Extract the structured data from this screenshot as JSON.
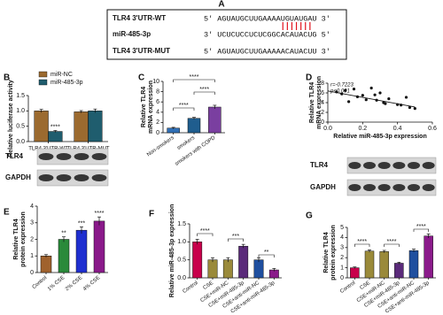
{
  "panel_a": {
    "label": "A",
    "rows": [
      {
        "name": "TLR4 3'UTR-WT",
        "sequence": "5' AGUAUGCUUGAAAAUGUAUGAU 3'"
      },
      {
        "name": "miR-485-3p",
        "sequence": "3' UCUCUCCUCUCGGCACAUACUG 5'"
      },
      {
        "name": "TLR4 3'UTR-MUT",
        "sequence": "5' AGUAUGCUUGAAAAACAUACUU 3'"
      }
    ]
  },
  "chart_data": [
    {
      "type": "bar",
      "label": "B",
      "y_label": [
        "Relative luciferase activity"
      ],
      "categories": [
        "TLR4 3'UTR-WT",
        "TLR4 3'UTR-MUT"
      ],
      "series": [
        {
          "name": "miR-NC",
          "color": "#9b6a2f",
          "values": [
            1.0,
            0.97
          ],
          "errors": [
            0.05,
            0.04
          ]
        },
        {
          "name": "miR-485-3p",
          "color": "#1f5d6e",
          "values": [
            0.33,
            1.0
          ],
          "errors": [
            0.03,
            0.06
          ]
        }
      ],
      "ylim": [
        0,
        1.5
      ],
      "yticks": [
        {
          "value": 0,
          "label": "0.0"
        },
        {
          "value": 0.5,
          "label": "0.5"
        },
        {
          "value": 1,
          "label": "1.0"
        },
        {
          "value": 1.5,
          "label": "1.5"
        }
      ],
      "annotations": [
        "****"
      ]
    },
    {
      "type": "bar",
      "label": "C",
      "y_label": [
        "Relative TLR4",
        "mRNA expression"
      ],
      "categories": [
        "Non-smokers",
        "smokers",
        "smokers with COPD"
      ],
      "values": [
        0.9,
        2.8,
        5.0
      ],
      "errors": [
        0.15,
        0.2,
        0.35
      ],
      "colors": [
        "#2f6fb5",
        "#1f5d8e",
        "#7a3fa0"
      ],
      "ylim": [
        0,
        10
      ],
      "yticks": [
        0,
        2,
        4,
        6,
        8,
        10
      ],
      "annotations": [
        "****",
        "****",
        "****"
      ]
    },
    {
      "type": "scatter",
      "label": "D",
      "y_label": [
        "Relative TLR4",
        "mRNA expression"
      ],
      "x_label": "Relative miR-485-3p expression",
      "x": [
        0.05,
        0.08,
        0.1,
        0.12,
        0.15,
        0.17,
        0.2,
        0.22,
        0.25,
        0.27,
        0.28,
        0.3,
        0.32,
        0.33,
        0.35,
        0.4,
        0.42,
        0.45,
        0.47,
        0.5
      ],
      "y": [
        6.2,
        5.8,
        6.5,
        4.2,
        6.8,
        5.2,
        5.5,
        4.6,
        7.0,
        5.6,
        4.5,
        6.0,
        4.0,
        3.8,
        4.8,
        3.6,
        3.5,
        5.1,
        3.0,
        2.8
      ],
      "trend": {
        "x": [
          0.0,
          0.5
        ],
        "y": [
          6.4,
          3.1
        ]
      },
      "xlim": [
        0,
        0.6
      ],
      "xticks": [
        {
          "value": 0,
          "label": "0.0"
        },
        0.2,
        0.4,
        0.6
      ],
      "ylim": [
        0,
        8
      ],
      "yticks": [
        0,
        2,
        4,
        6,
        8
      ],
      "annotations": [
        "r=-0.7223",
        "p<0.001"
      ]
    },
    {
      "type": "bar",
      "label": "E",
      "y_label": [
        "Relative TLR4",
        "protein expression"
      ],
      "blot_labels": [
        "TLR4",
        "GAPDH"
      ],
      "categories": [
        "Control",
        "1% CSE",
        "2% CSE",
        "4% CSE"
      ],
      "values": [
        1.0,
        2.0,
        2.55,
        3.1
      ],
      "errors": [
        0.08,
        0.15,
        0.2,
        0.25
      ],
      "colors": [
        "#a0622d",
        "#2a8a3a",
        "#1f2fd0",
        "#8a1a8a"
      ],
      "ylim": [
        0,
        4
      ],
      "yticks": [
        0,
        1,
        2,
        3,
        4
      ],
      "annotations": [
        "**",
        "***",
        "****"
      ]
    },
    {
      "type": "bar",
      "label": "F",
      "y_label": [
        "Relative miR-485-3p expression"
      ],
      "categories": [
        "Control",
        "CSE",
        "CSE+miR-NC",
        "CSE+miR-485-3p",
        "CSE+anti-miR-NC",
        "CSE+anti-miR-485-3p"
      ],
      "values": [
        1.0,
        0.5,
        0.5,
        0.88,
        0.5,
        0.22
      ],
      "errors": [
        0.07,
        0.06,
        0.06,
        0.05,
        0.06,
        0.04
      ],
      "colors": [
        "#c8004b",
        "#9a8a3a",
        "#9a8a3a",
        "#5a2a7a",
        "#1f4f9f",
        "#8a1a8a"
      ],
      "ylim": [
        0,
        1.5
      ],
      "yticks": [
        {
          "value": 0,
          "label": "0.0"
        },
        {
          "value": 0.5,
          "label": "0.5"
        },
        {
          "value": 1,
          "label": "1.0"
        },
        {
          "value": 1.5,
          "label": "1.5"
        }
      ],
      "annotations": [
        "****",
        "***",
        "**"
      ]
    },
    {
      "type": "bar",
      "label": "G",
      "y_label": [
        "Relative TLR4",
        "protein expression"
      ],
      "blot_labels": [
        "TLR4",
        "GAPDH"
      ],
      "categories": [
        "Control",
        "CSE",
        "CSE+miR-NC",
        "CSE+miR-485-3p",
        "CSE+anti-miR-NC",
        "CSE+anti-miR-485-3p"
      ],
      "values": [
        1.0,
        2.65,
        2.6,
        1.45,
        2.7,
        4.15
      ],
      "errors": [
        0.08,
        0.12,
        0.12,
        0.1,
        0.15,
        0.2
      ],
      "colors": [
        "#c8004b",
        "#9a8a3a",
        "#9a8a3a",
        "#5a2a7a",
        "#1f4f9f",
        "#8a1a8a"
      ],
      "ylim": [
        0,
        5
      ],
      "yticks": [
        0,
        1,
        2,
        3,
        4,
        5
      ],
      "annotations": [
        "****",
        "****",
        "****"
      ]
    }
  ]
}
